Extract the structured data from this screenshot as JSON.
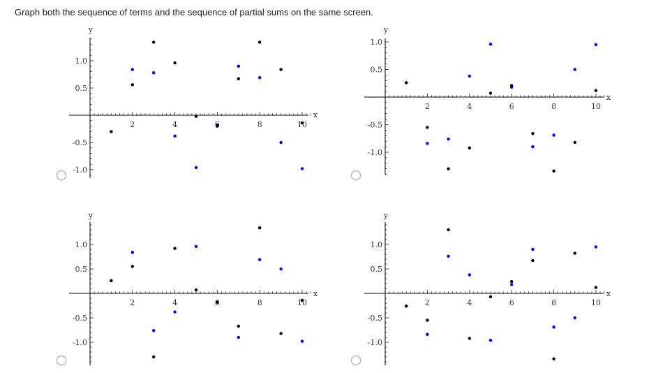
{
  "question": "Graph both the sequence of terms and the sequence of partial sums on the same screen.",
  "colors": {
    "terms": "#0000ff",
    "partial_sums": "#000000",
    "axis": "#000000"
  },
  "chart_data": [
    {
      "type": "scatter",
      "xlabel": "x",
      "ylabel": "y",
      "xlim": [
        0,
        10.6
      ],
      "ylim": [
        -1.2,
        1.4
      ],
      "x_ticks": [
        "2",
        "4",
        "6",
        "8",
        "10"
      ],
      "y_ticks": [
        "1.0",
        "0.5",
        "-0.5",
        "-1.0"
      ],
      "series": [
        {
          "role": "terms",
          "x": [
            1,
            2,
            3,
            4,
            5,
            6,
            7,
            8,
            9,
            10
          ],
          "y": [
            -0.3,
            0.84,
            0.78,
            -0.38,
            -0.96,
            -0.18,
            0.9,
            0.69,
            -0.5,
            -0.98
          ]
        },
        {
          "role": "partial_sums",
          "x": [
            1,
            2,
            3,
            4,
            5,
            6,
            7,
            8,
            9,
            10
          ],
          "y": [
            -0.3,
            0.56,
            1.34,
            0.96,
            -0.02,
            -0.2,
            0.67,
            1.34,
            0.84,
            -0.14
          ]
        }
      ]
    },
    {
      "type": "scatter",
      "xlabel": "x",
      "ylabel": "y",
      "xlim": [
        0,
        10.6
      ],
      "ylim": [
        -1.35,
        1.15
      ],
      "x_ticks": [
        "2",
        "4",
        "6",
        "8",
        "10"
      ],
      "y_ticks": [
        "1.0",
        "0.5",
        "-0.5",
        "-1.0"
      ],
      "series": [
        {
          "role": "terms",
          "x": [
            1,
            2,
            3,
            4,
            5,
            6,
            7,
            8,
            9,
            10
          ],
          "y": [
            0.26,
            -0.84,
            -0.76,
            0.38,
            0.96,
            0.18,
            -0.9,
            -0.69,
            0.5,
            0.95
          ]
        },
        {
          "role": "partial_sums",
          "x": [
            1,
            2,
            3,
            4,
            5,
            6,
            7,
            8,
            9,
            10
          ],
          "y": [
            0.26,
            -0.55,
            -1.3,
            -0.92,
            0.07,
            0.21,
            -0.66,
            -1.34,
            -0.82,
            0.12
          ]
        }
      ]
    },
    {
      "type": "scatter",
      "xlabel": "x",
      "ylabel": "y",
      "xlim": [
        0,
        10.6
      ],
      "ylim": [
        -1.3,
        1.4
      ],
      "x_ticks": [
        "2",
        "4",
        "6",
        "8",
        "10"
      ],
      "y_ticks": [
        "1.0",
        "0.5",
        "-0.5",
        "-1.0"
      ],
      "series": [
        {
          "role": "terms",
          "x": [
            1,
            2,
            3,
            4,
            5,
            6,
            7,
            8,
            9,
            10
          ],
          "y": [
            0.26,
            0.84,
            -0.76,
            -0.38,
            0.96,
            -0.18,
            -0.9,
            0.69,
            0.5,
            -0.98
          ]
        },
        {
          "role": "partial_sums",
          "x": [
            1,
            2,
            3,
            4,
            5,
            6,
            7,
            8,
            9,
            10
          ],
          "y": [
            0.26,
            0.55,
            -1.3,
            0.92,
            0.07,
            -0.18,
            -0.67,
            1.34,
            -0.82,
            -0.14
          ]
        }
      ]
    },
    {
      "type": "scatter",
      "xlabel": "x",
      "ylabel": "y",
      "xlim": [
        0,
        10.6
      ],
      "ylim": [
        -1.35,
        1.4
      ],
      "x_ticks": [
        "2",
        "4",
        "6",
        "8",
        "10"
      ],
      "y_ticks": [
        "1.0",
        "0.5",
        "-0.5",
        "-1.0"
      ],
      "series": [
        {
          "role": "terms",
          "x": [
            1,
            2,
            3,
            4,
            5,
            6,
            7,
            8,
            9,
            10
          ],
          "y": [
            -0.26,
            -0.84,
            0.76,
            0.38,
            -0.96,
            0.18,
            0.9,
            -0.69,
            -0.5,
            0.95
          ]
        },
        {
          "role": "partial_sums",
          "x": [
            1,
            2,
            3,
            4,
            5,
            6,
            7,
            8,
            9,
            10
          ],
          "y": [
            -0.26,
            -0.55,
            1.3,
            -0.92,
            -0.07,
            0.24,
            0.67,
            -1.34,
            0.82,
            0.12
          ]
        }
      ]
    }
  ]
}
